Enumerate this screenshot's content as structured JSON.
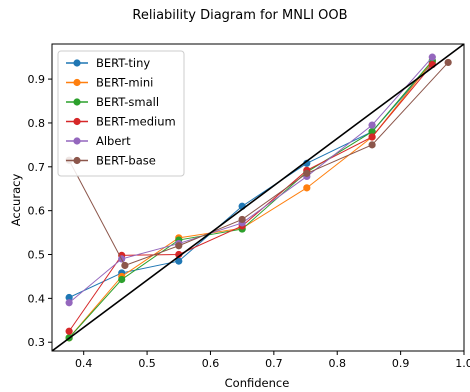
{
  "chart_data": {
    "type": "line",
    "title": "Reliability Diagram for MNLI OOB",
    "xlabel": "Confidence",
    "ylabel": "Accuracy",
    "xlim": [
      0.35,
      1.0
    ],
    "ylim": [
      0.28,
      0.98
    ],
    "x_ticks": [
      0.4,
      0.5,
      0.6,
      0.7,
      0.8,
      0.9,
      1.0
    ],
    "x_tick_labels": [
      "0.4",
      "0.5",
      "0.6",
      "0.7",
      "0.8",
      "0.9",
      "1.0"
    ],
    "y_ticks": [
      0.3,
      0.4,
      0.5,
      0.6,
      0.7,
      0.8,
      0.9
    ],
    "y_tick_labels": [
      "0.3",
      "0.4",
      "0.5",
      "0.6",
      "0.7",
      "0.8",
      "0.9"
    ],
    "grid": false,
    "legend_position": "top-left",
    "reference_line": {
      "x": [
        0.35,
        1.0
      ],
      "y": [
        0.28,
        0.98
      ],
      "color": "#000000"
    },
    "series": [
      {
        "name": "BERT-tiny",
        "color": "#1f77b4",
        "x": [
          0.377,
          0.46,
          0.55,
          0.65,
          0.752,
          0.855,
          0.95
        ],
        "y": [
          0.402,
          0.458,
          0.485,
          0.61,
          0.708,
          0.78,
          0.937
        ]
      },
      {
        "name": "BERT-mini",
        "color": "#ff7f0e",
        "x": [
          0.377,
          0.46,
          0.55,
          0.65,
          0.752,
          0.855,
          0.95
        ],
        "y": [
          0.31,
          0.45,
          0.538,
          0.56,
          0.652,
          0.768,
          0.94
        ]
      },
      {
        "name": "BERT-small",
        "color": "#2ca02c",
        "x": [
          0.377,
          0.46,
          0.55,
          0.65,
          0.752,
          0.855,
          0.95
        ],
        "y": [
          0.31,
          0.443,
          0.533,
          0.558,
          0.688,
          0.78,
          0.942
        ]
      },
      {
        "name": "BERT-medium",
        "color": "#d62728",
        "x": [
          0.377,
          0.46,
          0.55,
          0.65,
          0.752,
          0.855,
          0.95
        ],
        "y": [
          0.325,
          0.498,
          0.5,
          0.565,
          0.692,
          0.768,
          0.933
        ]
      },
      {
        "name": "Albert",
        "color": "#9467bd",
        "x": [
          0.377,
          0.46,
          0.55,
          0.65,
          0.752,
          0.855,
          0.95
        ],
        "y": [
          0.39,
          0.49,
          0.525,
          0.572,
          0.678,
          0.795,
          0.95
        ]
      },
      {
        "name": "BERT-base",
        "color": "#8c564b",
        "x": [
          0.377,
          0.465,
          0.55,
          0.65,
          0.752,
          0.855,
          0.975
        ],
        "y": [
          0.715,
          0.475,
          0.52,
          0.58,
          0.685,
          0.75,
          0.938
        ]
      }
    ]
  }
}
